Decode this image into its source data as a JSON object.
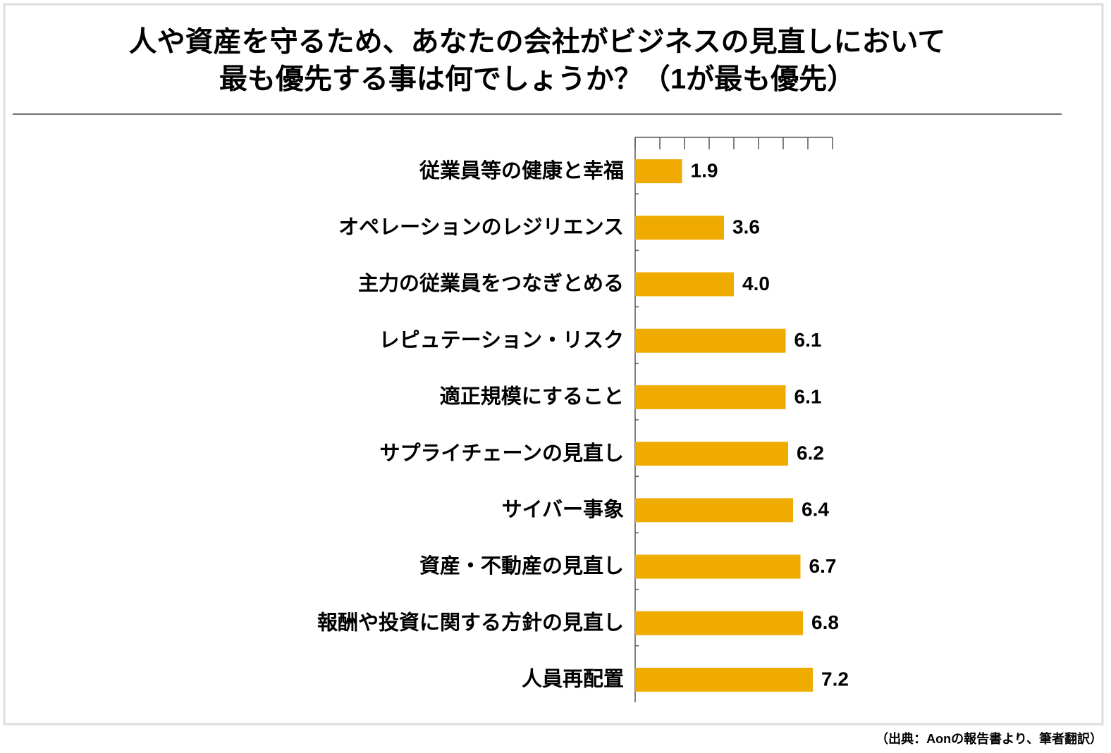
{
  "chart_data": {
    "type": "barh",
    "title": [
      "人や資産を守るため、あなたの会社がビジネスの見直しにおいて",
      "最も優先する事は何でしょうか？（1が最も優先）"
    ],
    "categories": [
      "従業員等の健康と幸福",
      "オペレーションのレジリエンス",
      "主力の従業員をつなぎとめる",
      "レピュテーション・リスク",
      "適正規模にすること",
      "サプライチェーンの見直し",
      "サイバー事象",
      "資産・不動産の見直し",
      "報酬や投資に関する方針の見直し",
      "人員再配置"
    ],
    "values": [
      1.9,
      3.6,
      4.0,
      6.1,
      6.1,
      6.2,
      6.4,
      6.7,
      6.8,
      7.2
    ],
    "value_labels": [
      "1.9",
      "3.6",
      "4.0",
      "6.1",
      "6.1",
      "6.2",
      "6.4",
      "6.7",
      "6.8",
      "7.2"
    ],
    "color": "#f0ab00",
    "xlim": [
      0,
      8
    ],
    "xticks": [
      0,
      1,
      2,
      3,
      4,
      5,
      6,
      7,
      8
    ]
  },
  "source": "（出典：Aonの報告書より、筆者翻訳）"
}
